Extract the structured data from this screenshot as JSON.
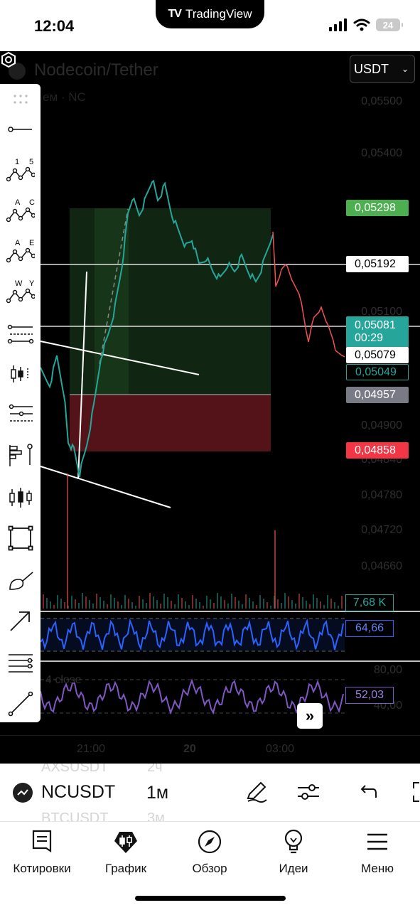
{
  "status_bar": {
    "time": "12:04",
    "app_pill": "TradingView",
    "battery": "24"
  },
  "chart": {
    "symbol_title": "Nodecoin/Tether",
    "symbol_sub": "ем · NC",
    "currency": "USDT",
    "price_ticks": [
      "0,05500",
      "0,05400",
      "0,05100",
      "0,04900",
      "0,04840",
      "0,04780",
      "0,04720",
      "0,04660"
    ],
    "labels": {
      "take_profit": "0,05298",
      "level_line": "0,05192",
      "last_price": "0,05081",
      "countdown": "00:29",
      "bid": "0,05079",
      "ask": "0,05049",
      "entry": "0,04957",
      "stop_loss": "0,04858"
    },
    "colors": {
      "profit": "#4caf50",
      "loss": "#f23645",
      "last_price": "#26a69a",
      "rsi_line": "#2962ff",
      "stoch_line": "#7e57c2"
    },
    "volume_value": "7,68 K",
    "indicator1_value": "64,66",
    "indicator2_value": "52,03",
    "indicator2_levels": [
      "80,00",
      "40,00"
    ],
    "indicator2_caption": "4 close",
    "time_ticks": [
      "21:00",
      "20",
      "03:00"
    ]
  },
  "toolbar": {
    "tools": [
      "drag-handle-icon",
      "trend-line-icon",
      "pattern-15-icon",
      "pattern-ac-icon",
      "pattern-ae-icon",
      "pattern-wy-icon",
      "channel-icon",
      "long-position-icon",
      "pitchfork-icon",
      "volume-profile-icon",
      "candles-icon",
      "rectangle-icon",
      "brush-icon",
      "arrow-icon",
      "lines-icon",
      "ray-icon"
    ],
    "pattern_letters": {
      "p1a": "1",
      "p1b": "5",
      "p2a": "A",
      "p2b": "C",
      "p3a": "A",
      "p3b": "E",
      "p4a": "W",
      "p4b": "Y"
    }
  },
  "symbol_bar": {
    "ghost_above": "AXSUSDT",
    "ghost_above_interval": "2ч",
    "symbol": "NCUSDT",
    "interval": "1м",
    "ghost_below": "BTCUSDT",
    "ghost_below_interval": "3м"
  },
  "nav": {
    "items": [
      {
        "label": "Котировки",
        "icon": "watchlist-icon"
      },
      {
        "label": "График",
        "icon": "chart-icon"
      },
      {
        "label": "Обзор",
        "icon": "compass-icon"
      },
      {
        "label": "Идеи",
        "icon": "lightbulb-icon"
      },
      {
        "label": "Меню",
        "icon": "menu-icon"
      }
    ]
  }
}
